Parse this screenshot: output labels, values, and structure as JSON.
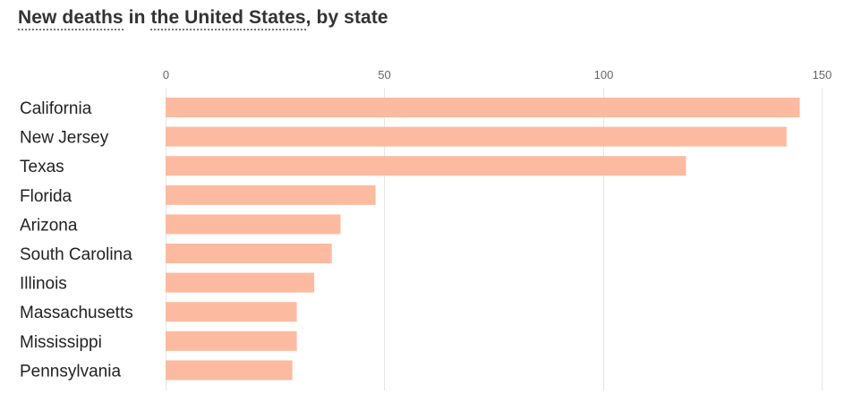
{
  "title": {
    "term1": "New deaths",
    "text1": " in ",
    "term2": "the United States",
    "text2": ", by state"
  },
  "colors": {
    "bar": "#fcbba1",
    "gridline": "#e6e6e6",
    "tick_text": "#666666",
    "label_text": "#222222"
  },
  "chart_data": {
    "type": "bar",
    "orientation": "horizontal",
    "title": "New deaths in the United States, by state",
    "xlabel": "",
    "ylabel": "",
    "xlim": [
      0,
      150
    ],
    "xticks": [
      0,
      50,
      100,
      150
    ],
    "xtick_labels": [
      "0",
      "50",
      "100",
      "150"
    ],
    "grid": true,
    "categories": [
      "California",
      "New Jersey",
      "Texas",
      "Florida",
      "Arizona",
      "South Carolina",
      "Illinois",
      "Massachusetts",
      "Mississippi",
      "Pennsylvania"
    ],
    "values": [
      145,
      142,
      119,
      48,
      40,
      38,
      34,
      30,
      30,
      29
    ]
  }
}
